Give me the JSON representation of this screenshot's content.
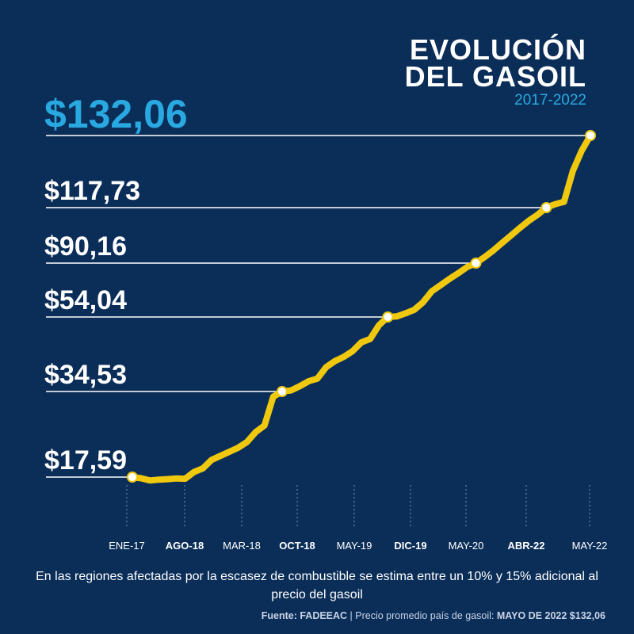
{
  "header": {
    "title_line1": "EVOLUCIÓN",
    "title_line2": "DEL GASOIL",
    "subtitle": "2017-2022"
  },
  "chart_data": {
    "type": "line",
    "x_labels": [
      "ENE-17",
      "AGO-18",
      "MAR-18",
      "OCT-18",
      "MAY-19",
      "DIC-19",
      "MAY-20",
      "ABR-22",
      "MAY-22"
    ],
    "x_labels_bold": [
      false,
      true,
      false,
      true,
      false,
      true,
      false,
      true,
      false
    ],
    "ref_values": [
      17.59,
      34.53,
      54.04,
      90.16,
      117.73,
      132.06
    ],
    "ref_labels": [
      "$17,59",
      "$34,53",
      "$54,04",
      "$90,16",
      "$117,73",
      "$132,06"
    ],
    "highlight_label": "$132,06",
    "series": [
      {
        "values": [
          17.59,
          16.9,
          15.6,
          16.1,
          16.4,
          16.8,
          16.6,
          18.6,
          19.3,
          21.0,
          21.8,
          22.6,
          23.4,
          24.5,
          26.5,
          27.8,
          33.5,
          34.53,
          34.8,
          35.9,
          37.2,
          37.9,
          40.9,
          42.5,
          43.6,
          45.1,
          47.4,
          48.3,
          51.9,
          54.04,
          54.4,
          56.5,
          58.9,
          63.9,
          71.3,
          75.4,
          79.6,
          83.4,
          87.5,
          90.16,
          93.2,
          96.5,
          100.3,
          104.0,
          107.7,
          111.2,
          114.2,
          117.73,
          118.4,
          118.9,
          125.0,
          129.0,
          132.06
        ]
      }
    ],
    "line_color": "#f0c90f",
    "accent_color": "#29a9e1",
    "background_color": "#0b2e59",
    "grid": false
  },
  "footer": {
    "note": "En las regiones afectadas por la escasez de combustible se estima entre un 10% y 15% adicional al precio del gasoil",
    "source_label": "Fuente:",
    "source_name": "FADEEAC",
    "source_sep": " | ",
    "source_text": "Precio promedio país de gasoil: ",
    "source_highlight": "MAYO DE 2022 $132,06"
  }
}
